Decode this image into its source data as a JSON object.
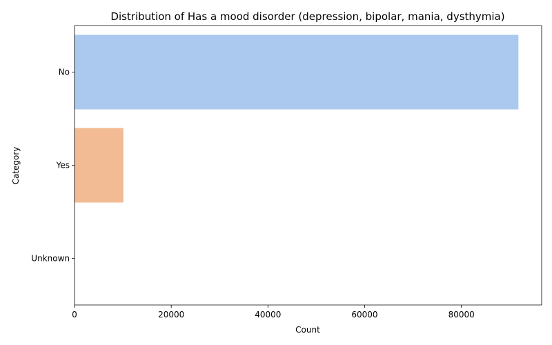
{
  "chart_data": {
    "type": "bar",
    "orientation": "horizontal",
    "title": "Distribution of Has a mood disorder (depression, bipolar, mania, dysthymia)",
    "xlabel": "Count",
    "ylabel": "Category",
    "categories": [
      "No",
      "Yes",
      "Unknown"
    ],
    "values": [
      91800,
      10100,
      0
    ],
    "colors": [
      "#abc9ee",
      "#f2bb93",
      "#98dcab"
    ],
    "xlim": [
      0,
      96600
    ],
    "xticks": [
      0,
      20000,
      40000,
      60000,
      80000
    ],
    "xtick_labels": [
      "0",
      "20000",
      "40000",
      "60000",
      "80000"
    ],
    "grid": false,
    "legend": "none"
  }
}
